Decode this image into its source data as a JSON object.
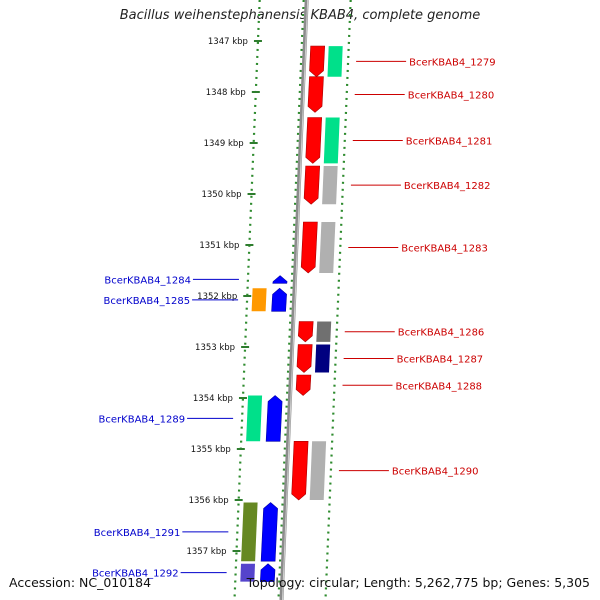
{
  "title": "Bacillus weihenstephanensis KBAB4, complete genome",
  "footer": {
    "accession": "Accession: NC_010184",
    "topology": "Topology: circular; Length: 5,262,775 bp; Genes: 5,305"
  },
  "colors": {
    "backbone": "#8c8c8c",
    "track_dots": "#2e8b2e",
    "tick": "#2e7d2e",
    "label_plus": "#0000cc",
    "label_minus": "#cc0000"
  },
  "ticks": [
    {
      "kbp": 1347,
      "label": "1347 kbp"
    },
    {
      "kbp": 1348,
      "label": "1348 kbp"
    },
    {
      "kbp": 1349,
      "label": "1349 kbp"
    },
    {
      "kbp": 1350,
      "label": "1350 kbp"
    },
    {
      "kbp": 1351,
      "label": "1351 kbp"
    },
    {
      "kbp": 1352,
      "label": "1352 kbp"
    },
    {
      "kbp": 1353,
      "label": "1353 kbp"
    },
    {
      "kbp": 1354,
      "label": "1354 kbp"
    },
    {
      "kbp": 1355,
      "label": "1355 kbp"
    },
    {
      "kbp": 1356,
      "label": "1356 kbp"
    },
    {
      "kbp": 1357,
      "label": "1357 kbp"
    }
  ],
  "genes": [
    {
      "label": "BcerKBAB4_1279",
      "strand": "-",
      "start": 1347.1,
      "end": 1347.7,
      "color": "#ff0000",
      "tag_color": "#00e08a"
    },
    {
      "label": "BcerKBAB4_1280",
      "strand": "-",
      "start": 1347.7,
      "end": 1348.4,
      "color": "#ff0000",
      "tag_color": ""
    },
    {
      "label": "BcerKBAB4_1281",
      "strand": "-",
      "start": 1348.5,
      "end": 1349.4,
      "color": "#ff0000",
      "tag_color": "#00e08a"
    },
    {
      "label": "BcerKBAB4_1282",
      "strand": "-",
      "start": 1349.45,
      "end": 1350.2,
      "color": "#ff0000",
      "tag_color": "#b0b0b0"
    },
    {
      "label": "BcerKBAB4_1283",
      "strand": "-",
      "start": 1350.55,
      "end": 1351.55,
      "color": "#ff0000",
      "tag_color": "#b0b0b0"
    },
    {
      "label": "BcerKBAB4_1284",
      "strand": "+",
      "start": 1351.6,
      "end": 1351.75,
      "color": "#0000ff",
      "tag_color": ""
    },
    {
      "label": "BcerKBAB4_1285",
      "strand": "+",
      "start": 1351.85,
      "end": 1352.3,
      "color": "#0000ff",
      "tag_color": "#ff9900"
    },
    {
      "label": "BcerKBAB4_1286",
      "strand": "-",
      "start": 1352.5,
      "end": 1352.9,
      "color": "#ff0000",
      "tag_color": "#707070"
    },
    {
      "label": "BcerKBAB4_1287",
      "strand": "-",
      "start": 1352.95,
      "end": 1353.5,
      "color": "#ff0000",
      "tag_color": "#000080"
    },
    {
      "label": "BcerKBAB4_1288",
      "strand": "-",
      "start": 1353.55,
      "end": 1353.95,
      "color": "#ff0000",
      "tag_color": ""
    },
    {
      "label": "BcerKBAB4_1289",
      "strand": "+",
      "start": 1353.95,
      "end": 1354.85,
      "color": "#0000ff",
      "tag_color": "#00e08a"
    },
    {
      "label": "BcerKBAB4_1290",
      "strand": "-",
      "start": 1354.85,
      "end": 1356.0,
      "color": "#ff0000",
      "tag_color": "#b0b0b0"
    },
    {
      "label": "BcerKBAB4_1291",
      "strand": "+",
      "start": 1356.05,
      "end": 1357.2,
      "color": "#0000ff",
      "tag_color": "#668822"
    },
    {
      "label": "BcerKBAB4_1292",
      "strand": "+",
      "start": 1357.25,
      "end": 1357.6,
      "color": "#0000ff",
      "tag_color": "#5544cc"
    }
  ]
}
